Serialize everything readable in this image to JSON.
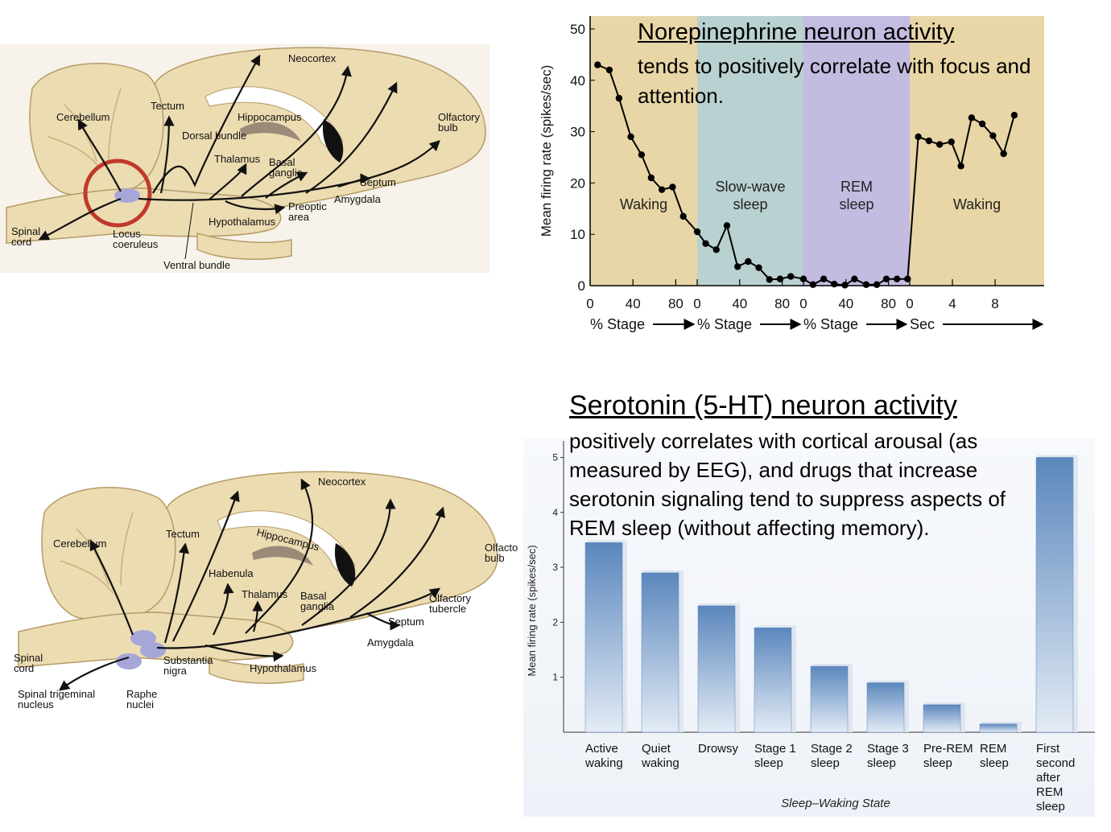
{
  "chart_data": [
    {
      "type": "line",
      "title": "Norepinephrine neuron activity",
      "annotation": "tends to positively correlate with focus and attention.",
      "y_label": "Mean firing rate (spikes/sec)",
      "ylim": [
        0,
        52.5
      ],
      "yticks": [
        0,
        10,
        20,
        30,
        40,
        50
      ],
      "color": "#000000",
      "panels": [
        {
          "label": "Waking",
          "x_label": "% Stage",
          "color": "#e8d6a6",
          "xlim": [
            0,
            100
          ],
          "xticks": [
            0,
            40,
            80
          ],
          "x": [
            7,
            18,
            27,
            38,
            48,
            57,
            67,
            77,
            87
          ],
          "values": [
            43,
            42,
            36.5,
            29,
            25.5,
            21,
            18.7,
            19.2,
            13.5
          ]
        },
        {
          "label": "Slow-wave sleep",
          "x_label": "% Stage",
          "color": "#b9d1d0",
          "xlim": [
            0,
            100
          ],
          "xticks": [
            0,
            40,
            80
          ],
          "x": [
            0,
            8,
            18,
            28,
            38,
            48,
            58,
            68,
            78,
            88
          ],
          "values": [
            10.5,
            8.2,
            7,
            11.7,
            3.7,
            4.7,
            3.5,
            1.2,
            1.3,
            1.8
          ]
        },
        {
          "label": "REM sleep",
          "x_label": "% Stage",
          "color": "#c4bbe0",
          "xlim": [
            0,
            100
          ],
          "xticks": [
            0,
            40,
            80
          ],
          "x": [
            0,
            9,
            19,
            29,
            39,
            48,
            59,
            69,
            78,
            88,
            98
          ],
          "values": [
            1.3,
            0.2,
            1.3,
            0.3,
            0.1,
            1.3,
            0.2,
            0.2,
            1.3,
            1.3,
            1.3
          ]
        },
        {
          "label": "Waking",
          "x_label": "Sec",
          "color": "#e8d6a6",
          "xlim": [
            0,
            12.6
          ],
          "xticks": [
            0,
            4,
            8
          ],
          "x": [
            0.8,
            1.8,
            2.8,
            3.9,
            4.8,
            5.8,
            6.8,
            7.8,
            8.8,
            9.8
          ],
          "values": [
            29,
            28.2,
            27.5,
            28,
            23.3,
            32.7,
            31.5,
            29.2,
            25.7,
            33.2
          ]
        }
      ]
    },
    {
      "type": "bar",
      "title": "Serotonin (5-HT) neuron activity",
      "annotation": "positively correlates with cortical arousal (as measured by EEG), and drugs that increase serotonin signaling tend to suppress aspects of REM sleep (without affecting memory).",
      "y_label": "Mean firing rate (spikes/sec)",
      "x_label": "Sleep–Waking State",
      "categories": [
        "Active waking",
        "Quiet waking",
        "Drowsy",
        "Stage 1 sleep",
        "Stage 2 sleep",
        "Stage 3 sleep",
        "Pre-REM sleep",
        "REM sleep",
        "First second after REM sleep"
      ],
      "values": [
        3.45,
        2.9,
        2.3,
        1.9,
        1.2,
        0.9,
        0.5,
        0.15,
        5.0
      ],
      "color": "#5b87bd",
      "ylim": [
        0,
        5.3
      ],
      "yticks": [
        1,
        2,
        3,
        4,
        5
      ]
    }
  ],
  "diagrams": [
    {
      "labels": [
        "Neocortex",
        "Tectum",
        "Cerebellum",
        "Hippocampus",
        "Dorsal bundle",
        "Thalamus",
        "Basal ganglia",
        "Olfactory bulb",
        "Septum",
        "Amygdala",
        "Preoptic area",
        "Hypothalamus",
        "Spinal cord",
        "Locus coeruleus",
        "Ventral bundle"
      ]
    },
    {
      "labels": [
        "Neocortex",
        "Tectum",
        "Cerebellum",
        "Hippocampus",
        "Habenula",
        "Thalamus",
        "Basal ganglia",
        "Olfacto bulb",
        "Olfactory tubercle",
        "Septum",
        "Amygdala",
        "Substantia nigra",
        "Hypothalamus",
        "Spinal cord",
        "Spinal trigeminal nucleus",
        "Raphe nuclei"
      ]
    }
  ]
}
